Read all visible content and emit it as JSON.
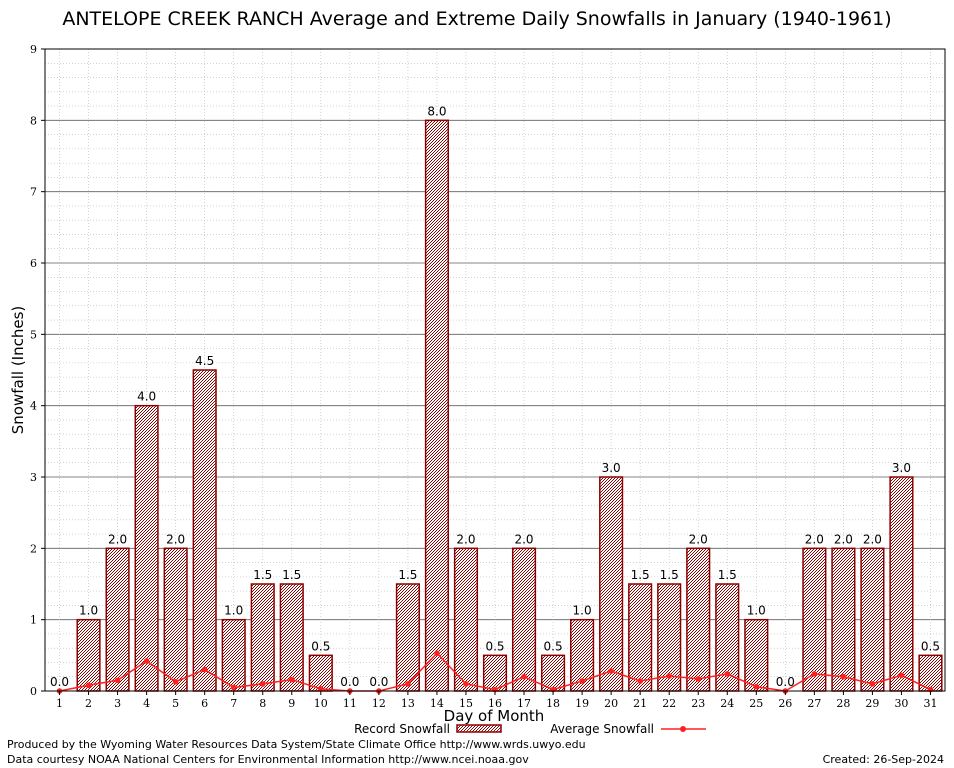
{
  "chart_data": {
    "type": "bar",
    "title": "ANTELOPE CREEK RANCH Average and Extreme Daily Snowfalls in January (1940-1961)",
    "xlabel": "Day of Month",
    "ylabel": "Snowfall (Inches)",
    "ylim": [
      0,
      9
    ],
    "yticks": [
      0,
      1,
      2,
      3,
      4,
      5,
      6,
      7,
      8,
      9
    ],
    "grid": true,
    "legend_position": "bottom",
    "categories": [
      "1",
      "2",
      "3",
      "4",
      "5",
      "6",
      "7",
      "8",
      "9",
      "10",
      "11",
      "12",
      "13",
      "14",
      "15",
      "16",
      "17",
      "18",
      "19",
      "20",
      "21",
      "22",
      "23",
      "24",
      "25",
      "26",
      "27",
      "28",
      "29",
      "30",
      "31"
    ],
    "series": [
      {
        "name": "Record Snowfall",
        "kind": "bar",
        "color": "#8b0000",
        "values": [
          0.0,
          1.0,
          2.0,
          4.0,
          2.0,
          4.5,
          1.0,
          1.5,
          1.5,
          0.5,
          0.0,
          0.0,
          1.5,
          8.0,
          2.0,
          0.5,
          2.0,
          0.5,
          1.0,
          3.0,
          1.5,
          1.5,
          2.0,
          1.5,
          1.0,
          0.0,
          2.0,
          2.0,
          2.0,
          3.0,
          0.5
        ],
        "labels": [
          "0.0",
          "1.0",
          "2.0",
          "4.0",
          "2.0",
          "4.5",
          "1.0",
          "1.5",
          "1.5",
          "0.5",
          "0.0",
          "0.0",
          "1.5",
          "8.0",
          "2.0",
          "0.5",
          "2.0",
          "0.5",
          "1.0",
          "3.0",
          "1.5",
          "1.5",
          "2.0",
          "1.5",
          "1.0",
          "0.0",
          "2.0",
          "2.0",
          "2.0",
          "3.0",
          "0.5"
        ]
      },
      {
        "name": "Average Snowfall",
        "kind": "line",
        "color": "#ff2020",
        "values": [
          0.0,
          0.08,
          0.15,
          0.42,
          0.13,
          0.3,
          0.05,
          0.1,
          0.16,
          0.03,
          0.0,
          0.0,
          0.1,
          0.53,
          0.1,
          0.02,
          0.2,
          0.02,
          0.14,
          0.28,
          0.14,
          0.21,
          0.17,
          0.24,
          0.06,
          0.0,
          0.24,
          0.2,
          0.1,
          0.22,
          0.02
        ]
      }
    ]
  },
  "footer": {
    "line1": "Produced by the Wyoming Water Resources Data System/State Climate Office http://www.wrds.uwyo.edu",
    "line2": "Data courtesy NOAA National Centers for Environmental Information http://www.ncei.noaa.gov",
    "created": "Created:  26-Sep-2024"
  }
}
